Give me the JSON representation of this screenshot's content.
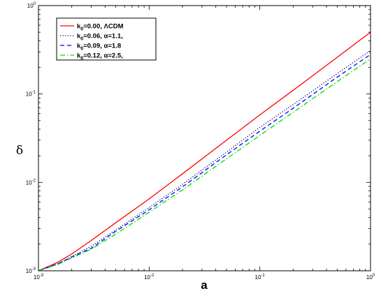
{
  "chart_data": {
    "type": "line",
    "xlabel": "a",
    "ylabel": "δ",
    "xscale": "log",
    "yscale": "log",
    "xlim": [
      0.001,
      1
    ],
    "ylim": [
      0.001,
      1
    ],
    "x_ticks": [
      {
        "base": "10",
        "exp": "-3",
        "value": 0.001
      },
      {
        "base": "10",
        "exp": "-2",
        "value": 0.01
      },
      {
        "base": "10",
        "exp": "-1",
        "value": 0.1
      },
      {
        "base": "10",
        "exp": "0",
        "value": 1
      }
    ],
    "y_ticks": [
      {
        "base": "10",
        "exp": "-3",
        "value": 0.001
      },
      {
        "base": "10",
        "exp": "-2",
        "value": 0.01
      },
      {
        "base": "10",
        "exp": "-1",
        "value": 0.1
      },
      {
        "base": "10",
        "exp": "0",
        "value": 1
      }
    ],
    "legend_position": "top-left",
    "grid": false,
    "series": [
      {
        "legend": {
          "k": "k",
          "sub": "0",
          "rest": "=0.00, ΛCDM"
        },
        "color": "#ff0000",
        "dash": "solid",
        "x": [
          0.001,
          0.0015,
          0.002,
          0.003,
          0.005,
          0.01,
          0.02,
          0.05,
          0.1,
          0.2,
          0.5,
          1.0
        ],
        "y": [
          0.001,
          0.00125,
          0.00155,
          0.0022,
          0.0035,
          0.0065,
          0.0125,
          0.03,
          0.058,
          0.11,
          0.26,
          0.5
        ]
      },
      {
        "legend": {
          "k": "k",
          "sub": "0",
          "rest": "=0.06, α=1.1,"
        },
        "color": "#000080",
        "dash": "dotted",
        "x": [
          0.001,
          0.0015,
          0.002,
          0.003,
          0.005,
          0.01,
          0.02,
          0.05,
          0.1,
          0.2,
          0.5,
          1.0
        ],
        "y": [
          0.001,
          0.0012,
          0.00145,
          0.0019,
          0.0029,
          0.0052,
          0.0095,
          0.022,
          0.042,
          0.076,
          0.17,
          0.31
        ]
      },
      {
        "legend": {
          "k": "k",
          "sub": "0",
          "rest": "=0.09, α=1.8"
        },
        "color": "#0000ff",
        "dash": "dashed",
        "x": [
          0.001,
          0.0015,
          0.002,
          0.003,
          0.005,
          0.01,
          0.02,
          0.05,
          0.1,
          0.2,
          0.5,
          1.0
        ],
        "y": [
          0.001,
          0.0012,
          0.00143,
          0.0018,
          0.0028,
          0.0049,
          0.0089,
          0.0205,
          0.038,
          0.069,
          0.155,
          0.28
        ]
      },
      {
        "legend": {
          "k": "k",
          "sub": "0",
          "rest": "=0.12, α=2.5,"
        },
        "color": "#00dd00",
        "dash": "dashdot",
        "x": [
          0.001,
          0.0015,
          0.002,
          0.003,
          0.005,
          0.01,
          0.02,
          0.05,
          0.1,
          0.2,
          0.5,
          1.0
        ],
        "y": [
          0.001,
          0.00118,
          0.0014,
          0.00175,
          0.0026,
          0.0046,
          0.0082,
          0.0185,
          0.034,
          0.062,
          0.138,
          0.25
        ]
      }
    ]
  }
}
